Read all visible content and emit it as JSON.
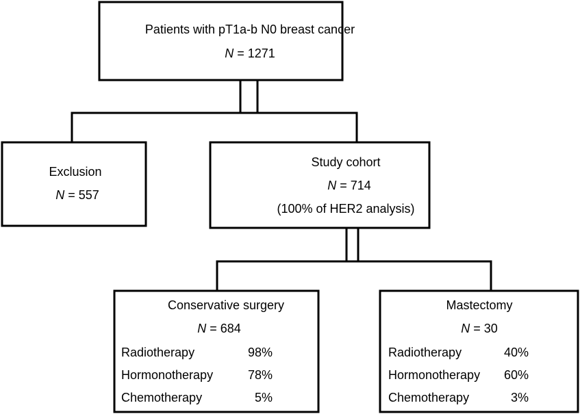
{
  "nodes": [
    {
      "title": "Patients with  pT1a-b N0 breast cancer",
      "n_symbol": "N",
      "n": "= 1271"
    },
    {
      "title": "Exclusion",
      "n_symbol": "N",
      "n": "= 557"
    },
    {
      "title": "Study cohort",
      "n_symbol": "N",
      "n": "= 714",
      "note": "(100% of HER2 analysis)"
    },
    {
      "title": "Conservative surgery",
      "n_symbol": "N",
      "n": "= 684",
      "rows": [
        [
          "Radiotherapy",
          "98%"
        ],
        [
          "Hormonotherapy",
          "78%"
        ],
        [
          "Chemotherapy",
          "5%"
        ]
      ]
    },
    {
      "title": "Mastectomy",
      "n_symbol": "N",
      "n": "= 30",
      "rows": [
        [
          "Radiotherapy",
          "40%"
        ],
        [
          "Hormonotherapy",
          "60%"
        ],
        [
          "Chemotherapy",
          "3%"
        ]
      ]
    }
  ]
}
